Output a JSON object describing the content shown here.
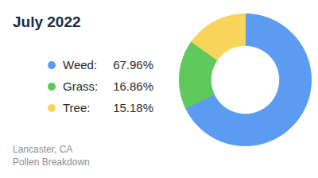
{
  "chart_data": {
    "type": "pie",
    "title": "July 2022",
    "caption": [
      "Lancaster, CA",
      "Pollen Breakdown"
    ],
    "categories": [
      "Weed:",
      "Grass:",
      "Tree:"
    ],
    "values": [
      67.96,
      16.86,
      15.18
    ],
    "value_labels": [
      "67.96%",
      "16.86%",
      "15.18%"
    ],
    "colors": [
      "#5b9cf2",
      "#5fc95b",
      "#f8d55a"
    ],
    "legend": "left"
  }
}
